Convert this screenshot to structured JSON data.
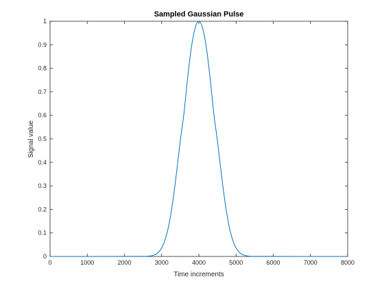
{
  "chart_data": {
    "type": "line",
    "title": "Sampled Gaussian Pulse",
    "xlabel": "Time increments",
    "ylabel": "Signal value",
    "xlim": [
      0,
      8000
    ],
    "ylim": [
      0,
      1
    ],
    "x_ticks": [
      0,
      1000,
      2000,
      3000,
      4000,
      5000,
      6000,
      7000,
      8000
    ],
    "y_ticks": [
      0,
      0.1,
      0.2,
      0.3,
      0.4,
      0.5,
      0.6,
      0.7,
      0.8,
      0.9,
      1
    ],
    "grid": false,
    "series": [
      {
        "color": "#0072bd",
        "x": [
          0,
          2500,
          2600,
          2700,
          2800,
          2900,
          3000,
          3100,
          3200,
          3300,
          3400,
          3500,
          3600,
          3700,
          3800,
          3900,
          4000,
          4100,
          4200,
          4300,
          4400,
          4500,
          4600,
          4700,
          4800,
          4900,
          5000,
          5100,
          5200,
          5300,
          5400,
          5500,
          8000
        ],
        "y": [
          0,
          0.0002,
          0.0007,
          0.0022,
          0.0063,
          0.0158,
          0.0362,
          0.0747,
          0.1393,
          0.2346,
          0.3569,
          0.4906,
          0.6095,
          0.7618,
          0.8894,
          0.9711,
          1.0,
          0.9711,
          0.8894,
          0.7618,
          0.6095,
          0.4906,
          0.3569,
          0.2346,
          0.1393,
          0.0747,
          0.0362,
          0.0158,
          0.0063,
          0.0022,
          0.0007,
          0.0002,
          0
        ]
      }
    ]
  }
}
